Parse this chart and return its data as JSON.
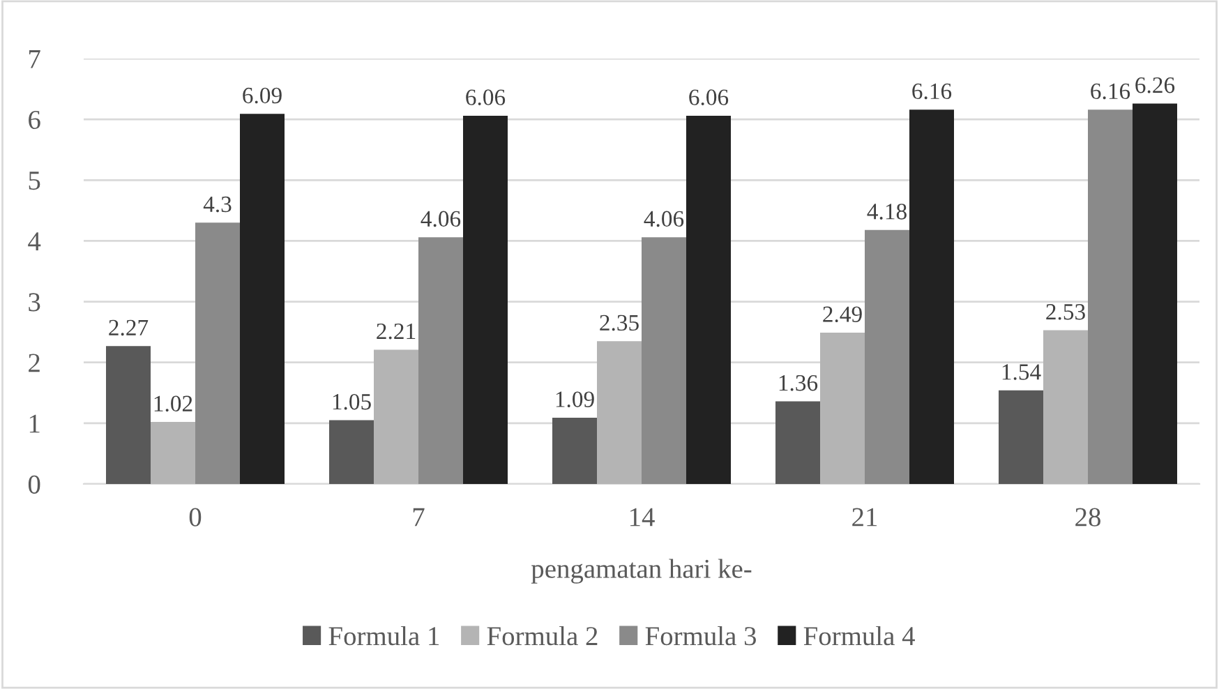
{
  "chart_data": {
    "type": "bar",
    "xlabel": "pengamatan hari ke-",
    "categories": [
      "0",
      "7",
      "14",
      "21",
      "28"
    ],
    "series": [
      {
        "name": "Formula 1",
        "color": "#595959",
        "values": [
          2.27,
          1.05,
          1.09,
          1.36,
          1.54
        ]
      },
      {
        "name": "Formula 2",
        "color": "#b4b4b4",
        "values": [
          1.02,
          2.21,
          2.35,
          2.49,
          2.53
        ]
      },
      {
        "name": "Formula 3",
        "color": "#8a8a8a",
        "values": [
          4.3,
          4.06,
          4.06,
          4.18,
          6.16
        ]
      },
      {
        "name": "Formula 4",
        "color": "#222222",
        "values": [
          6.09,
          6.06,
          6.06,
          6.16,
          6.26
        ]
      }
    ],
    "ylim": [
      0,
      7
    ],
    "yticks": [
      0,
      1,
      2,
      3,
      4,
      5,
      6,
      7
    ],
    "grid": "y",
    "legend": "bottom",
    "data_labels": true
  }
}
